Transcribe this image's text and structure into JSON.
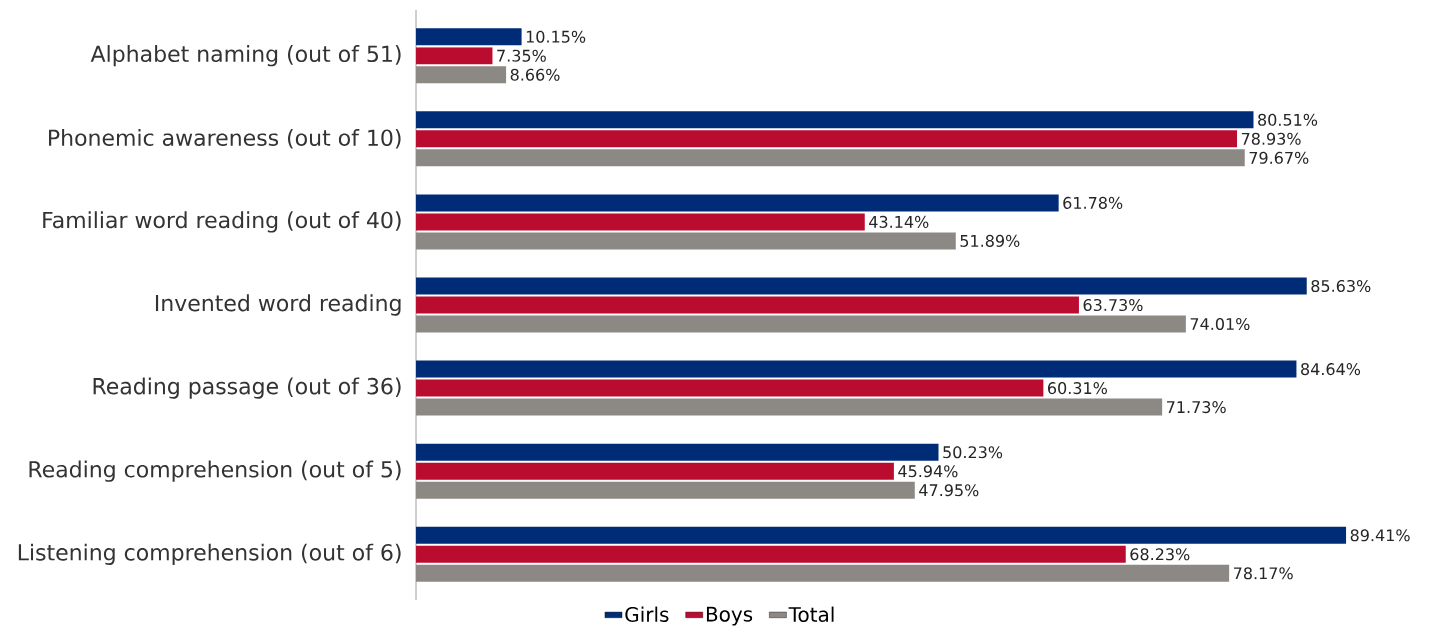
{
  "chart_data": {
    "type": "bar",
    "orientation": "horizontal",
    "legend": "bottom",
    "categories": [
      "Alphabet naming (out of 51)",
      "Phonemic awareness (out of 10)",
      "Familiar word reading (out of 40)",
      "Invented word reading",
      "Reading passage (out of 36)",
      "Reading comprehension (out of 5)",
      "Listening comprehension (out of 6)"
    ],
    "series": [
      {
        "name": "Girls",
        "color": "#002c77",
        "values": [
          10.15,
          80.51,
          61.78,
          85.63,
          84.64,
          50.23,
          89.41
        ],
        "value_labels": [
          "10.15%",
          "80.51%",
          "61.78%",
          "85.63%",
          "84.64%",
          "50.23%",
          "89.41%"
        ]
      },
      {
        "name": "Boys",
        "color": "#ba0c2f",
        "values": [
          7.35,
          78.93,
          43.14,
          63.73,
          60.31,
          45.94,
          68.23
        ],
        "value_labels": [
          "7.35%",
          "78.93%",
          "43.14%",
          "63.73%",
          "60.31%",
          "45.94%",
          "68.23%"
        ]
      },
      {
        "name": "Total",
        "color": "#8c8985",
        "values": [
          8.66,
          79.67,
          51.89,
          74.01,
          71.73,
          47.95,
          78.17
        ],
        "value_labels": [
          "8.66%",
          "79.67%",
          "51.89%",
          "74.01%",
          "71.73%",
          "47.95%",
          "78.17%"
        ]
      }
    ]
  }
}
